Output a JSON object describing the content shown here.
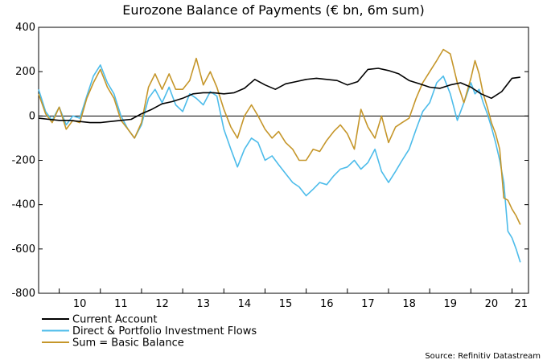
{
  "chart_data": {
    "type": "line",
    "title": "Eurozone Balance of Payments (€ bn, 6m sum)",
    "xlabel": "",
    "ylabel": "",
    "ylim": [
      -800,
      400
    ],
    "yticks": [
      400,
      200,
      0,
      -200,
      -400,
      -600,
      -800
    ],
    "xlim": [
      2009.5,
      2021.4
    ],
    "xticks": [
      "10",
      "11",
      "12",
      "13",
      "14",
      "15",
      "16",
      "17",
      "18",
      "19",
      "20",
      "21"
    ],
    "grid": false,
    "legend_position": "bottom-left",
    "source": "Source: Refinitiv Datastream",
    "series": [
      {
        "name": "Current Account",
        "color": "#000000",
        "x": [
          2009.5,
          2009.75,
          2010.0,
          2010.25,
          2010.5,
          2010.75,
          2011.0,
          2011.25,
          2011.5,
          2011.75,
          2012.0,
          2012.25,
          2012.5,
          2012.75,
          2013.0,
          2013.25,
          2013.5,
          2013.75,
          2014.0,
          2014.25,
          2014.5,
          2014.75,
          2015.0,
          2015.25,
          2015.5,
          2015.75,
          2016.0,
          2016.25,
          2016.5,
          2016.75,
          2017.0,
          2017.25,
          2017.5,
          2017.75,
          2018.0,
          2018.25,
          2018.5,
          2018.75,
          2019.0,
          2019.25,
          2019.5,
          2019.75,
          2020.0,
          2020.25,
          2020.5,
          2020.75,
          2021.0,
          2021.2
        ],
        "values": [
          -10,
          -15,
          -20,
          -20,
          -25,
          -30,
          -30,
          -25,
          -20,
          -15,
          10,
          30,
          55,
          65,
          80,
          100,
          105,
          105,
          100,
          105,
          125,
          165,
          140,
          120,
          145,
          155,
          165,
          170,
          165,
          160,
          140,
          155,
          210,
          215,
          205,
          190,
          160,
          145,
          130,
          125,
          140,
          150,
          130,
          100,
          80,
          110,
          170,
          175
        ]
      },
      {
        "name": "Direct & Portfolio Investment Flows",
        "color": "#4dbcea",
        "x": [
          2009.5,
          2009.67,
          2009.83,
          2010.0,
          2010.17,
          2010.33,
          2010.5,
          2010.67,
          2010.83,
          2011.0,
          2011.17,
          2011.33,
          2011.5,
          2011.67,
          2011.83,
          2012.0,
          2012.17,
          2012.33,
          2012.5,
          2012.67,
          2012.83,
          2013.0,
          2013.17,
          2013.33,
          2013.5,
          2013.67,
          2013.83,
          2014.0,
          2014.17,
          2014.33,
          2014.5,
          2014.67,
          2014.83,
          2015.0,
          2015.17,
          2015.33,
          2015.5,
          2015.67,
          2015.83,
          2016.0,
          2016.17,
          2016.33,
          2016.5,
          2016.67,
          2016.83,
          2017.0,
          2017.17,
          2017.33,
          2017.5,
          2017.67,
          2017.83,
          2018.0,
          2018.17,
          2018.33,
          2018.5,
          2018.67,
          2018.83,
          2019.0,
          2019.17,
          2019.33,
          2019.5,
          2019.67,
          2019.83,
          2020.0,
          2020.1,
          2020.2,
          2020.3,
          2020.4,
          2020.5,
          2020.6,
          2020.7,
          2020.8,
          2020.9,
          2021.0,
          2021.1,
          2021.2
        ],
        "values": [
          120,
          20,
          -20,
          40,
          -40,
          0,
          -10,
          90,
          180,
          230,
          150,
          100,
          0,
          -60,
          -100,
          -40,
          80,
          120,
          60,
          130,
          50,
          20,
          100,
          80,
          50,
          110,
          90,
          -60,
          -150,
          -230,
          -150,
          -100,
          -120,
          -200,
          -180,
          -220,
          -260,
          -300,
          -320,
          -360,
          -330,
          -300,
          -310,
          -270,
          -240,
          -230,
          -200,
          -240,
          -210,
          -150,
          -250,
          -300,
          -250,
          -200,
          -150,
          -60,
          20,
          60,
          150,
          180,
          100,
          -20,
          60,
          150,
          100,
          120,
          60,
          10,
          -50,
          -120,
          -200,
          -300,
          -520,
          -550,
          -600,
          -660
        ]
      },
      {
        "name": "Sum = Basic Balance",
        "color": "#c5962a",
        "x": [
          2009.5,
          2009.67,
          2009.83,
          2010.0,
          2010.17,
          2010.33,
          2010.5,
          2010.67,
          2010.83,
          2011.0,
          2011.17,
          2011.33,
          2011.5,
          2011.67,
          2011.83,
          2012.0,
          2012.17,
          2012.33,
          2012.5,
          2012.67,
          2012.83,
          2013.0,
          2013.17,
          2013.33,
          2013.5,
          2013.67,
          2013.83,
          2014.0,
          2014.17,
          2014.33,
          2014.5,
          2014.67,
          2014.83,
          2015.0,
          2015.17,
          2015.33,
          2015.5,
          2015.67,
          2015.83,
          2016.0,
          2016.17,
          2016.33,
          2016.5,
          2016.67,
          2016.83,
          2017.0,
          2017.17,
          2017.33,
          2017.5,
          2017.67,
          2017.83,
          2018.0,
          2018.17,
          2018.33,
          2018.5,
          2018.67,
          2018.83,
          2019.0,
          2019.17,
          2019.33,
          2019.5,
          2019.67,
          2019.83,
          2020.0,
          2020.1,
          2020.2,
          2020.3,
          2020.4,
          2020.5,
          2020.6,
          2020.7,
          2020.8,
          2020.9,
          2021.0,
          2021.1,
          2021.2
        ],
        "values": [
          100,
          10,
          -30,
          40,
          -60,
          -20,
          -30,
          80,
          150,
          210,
          130,
          80,
          -20,
          -60,
          -100,
          -30,
          130,
          190,
          120,
          190,
          120,
          120,
          160,
          260,
          140,
          200,
          130,
          30,
          -50,
          -100,
          0,
          50,
          0,
          -60,
          -100,
          -70,
          -120,
          -150,
          -200,
          -200,
          -150,
          -160,
          -110,
          -70,
          -40,
          -80,
          -150,
          30,
          -50,
          -100,
          0,
          -120,
          -50,
          -30,
          -10,
          80,
          150,
          200,
          250,
          300,
          280,
          150,
          60,
          170,
          250,
          190,
          100,
          40,
          -30,
          -80,
          -150,
          -370,
          -380,
          -420,
          -450,
          -490
        ]
      }
    ]
  }
}
